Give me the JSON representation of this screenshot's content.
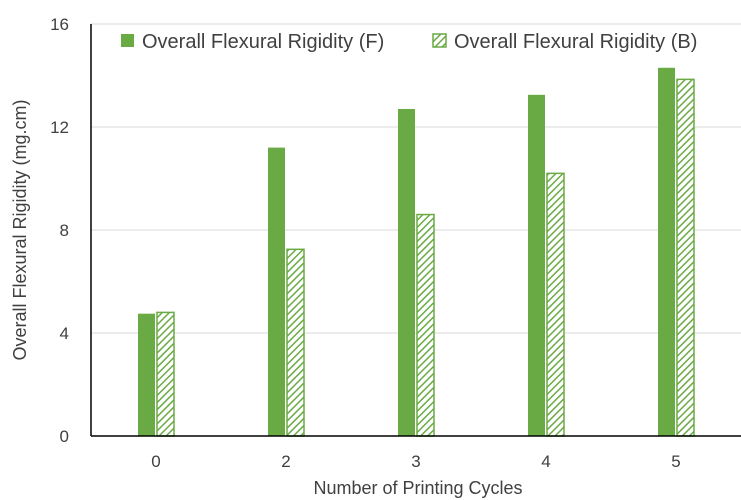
{
  "chart_data": {
    "type": "bar",
    "title": "",
    "xlabel": "Number of Printing Cycles",
    "ylabel": "Overall Flexural Rigidity (mg.cm)",
    "categories": [
      "0",
      "2",
      "3",
      "4",
      "5"
    ],
    "ylim": [
      0,
      16
    ],
    "yticks": [
      "0",
      "4",
      "8",
      "12",
      "16"
    ],
    "grid": true,
    "legend_position": "top-right",
    "series": [
      {
        "name": "Overall Flexural Rigidity (F)",
        "pattern": "solid",
        "color": "#6aaa45",
        "values": [
          4.75,
          11.2,
          12.7,
          13.25,
          14.3
        ]
      },
      {
        "name": "Overall Flexural Rigidity (B)",
        "pattern": "hatched",
        "color": "#6aaa45",
        "values": [
          4.8,
          7.25,
          8.6,
          10.2,
          13.85
        ]
      }
    ]
  }
}
